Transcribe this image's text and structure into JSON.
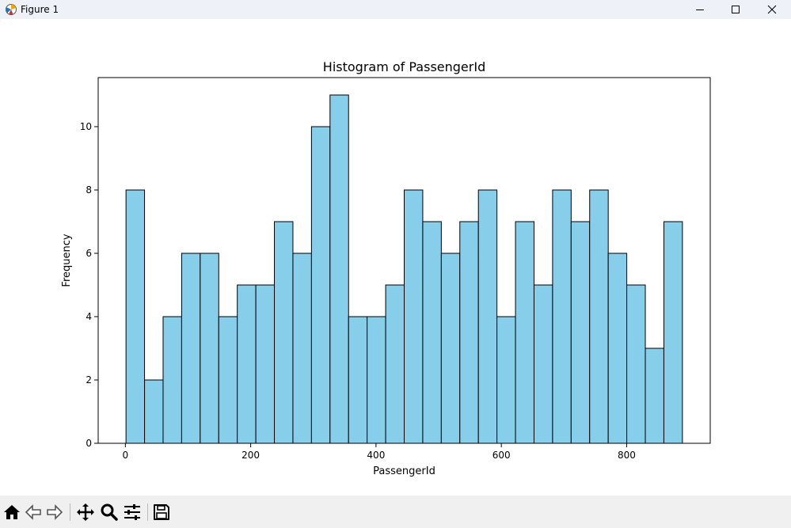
{
  "window": {
    "title": "Figure 1"
  },
  "toolbar": {
    "buttons": [
      "home-icon",
      "back-icon",
      "forward-icon",
      "pan-icon",
      "zoom-icon",
      "configure-subplots-icon",
      "save-icon"
    ]
  },
  "colors": {
    "bar_fill": "#87ceeb",
    "bar_edge": "#000000"
  },
  "chart_data": {
    "type": "bar",
    "title": "Histogram of PassengerId",
    "xlabel": "PassengerId",
    "ylabel": "Frequency",
    "bin_edges": [
      1.0,
      30.6,
      60.2,
      89.8,
      119.4,
      149.0,
      178.6,
      208.2,
      237.8,
      267.4,
      297.0,
      326.6,
      356.2,
      385.8,
      415.4,
      445.0,
      474.6,
      504.2,
      533.8,
      563.4,
      593.0,
      622.6,
      652.2,
      681.8,
      711.4,
      741.0,
      770.6,
      800.2,
      829.8,
      859.4,
      889.0
    ],
    "values": [
      8,
      2,
      4,
      6,
      6,
      4,
      5,
      5,
      7,
      6,
      10,
      11,
      4,
      4,
      5,
      8,
      7,
      6,
      7,
      8,
      4,
      7,
      5,
      8,
      7,
      8,
      6,
      5,
      3,
      7
    ],
    "xlim": [
      -43.4,
      933.4
    ],
    "ylim": [
      0,
      11.55
    ],
    "xticks": [
      0,
      200,
      400,
      600,
      800
    ],
    "xtick_labels": [
      "0",
      "200",
      "400",
      "600",
      "800"
    ],
    "yticks": [
      0,
      2,
      4,
      6,
      8,
      10
    ],
    "ytick_labels": [
      "0",
      "2",
      "4",
      "6",
      "8",
      "10"
    ],
    "grid": false
  }
}
